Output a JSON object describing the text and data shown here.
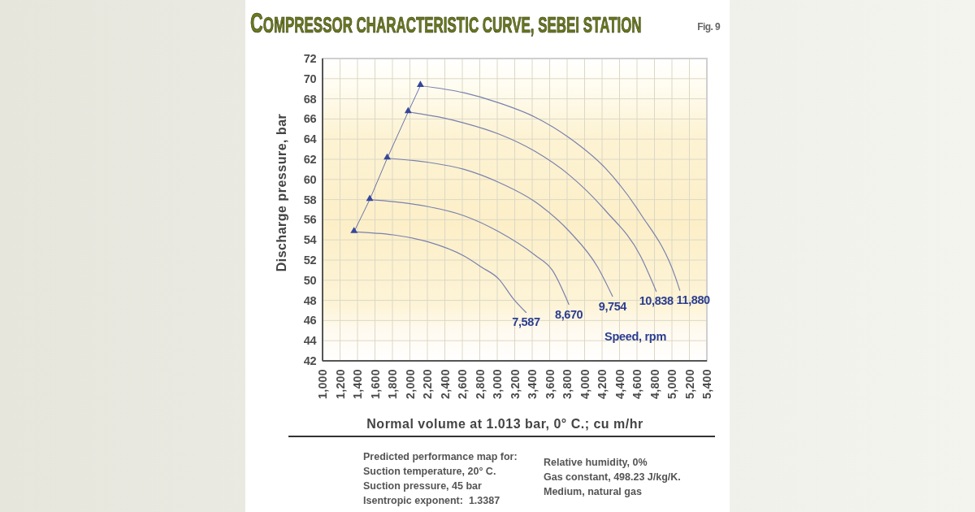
{
  "chart_data": {
    "type": "line",
    "title": "COMPRESSOR CHARACTERISTIC CURVE, SEBEI STATION",
    "xlabel": "Normal volume at 1.013 bar, 0° C.; cu m/hr",
    "ylabel": "Discharge pressure, bar",
    "legend_title": "Speed, rpm",
    "xlim": [
      1000,
      5400
    ],
    "xticks": [
      {
        "value": 1000,
        "label": "1,000"
      },
      {
        "value": 1200,
        "label": "1,200"
      },
      {
        "value": 1400,
        "label": "1,400"
      },
      {
        "value": 1600,
        "label": "1,600"
      },
      {
        "value": 1800,
        "label": "1,800"
      },
      {
        "value": 2000,
        "label": "2,000"
      },
      {
        "value": 2200,
        "label": "2,200"
      },
      {
        "value": 2400,
        "label": "2,400"
      },
      {
        "value": 2600,
        "label": "2,600"
      },
      {
        "value": 2800,
        "label": "2,800"
      },
      {
        "value": 3000,
        "label": "3,000"
      },
      {
        "value": 3200,
        "label": "3,200"
      },
      {
        "value": 3400,
        "label": "3,400"
      },
      {
        "value": 3600,
        "label": "3,600"
      },
      {
        "value": 3800,
        "label": "3,800"
      },
      {
        "value": 4000,
        "label": "4,000"
      },
      {
        "value": 4200,
        "label": "4,200"
      },
      {
        "value": 4400,
        "label": "4,400"
      },
      {
        "value": 4600,
        "label": "4,600"
      },
      {
        "value": 4800,
        "label": "4,800"
      },
      {
        "value": 5000,
        "label": "5,000"
      },
      {
        "value": 5200,
        "label": "5,200"
      },
      {
        "value": 5400,
        "label": "5,400"
      }
    ],
    "ylim": [
      42,
      72
    ],
    "yticks": [
      42,
      44,
      46,
      48,
      50,
      52,
      54,
      56,
      58,
      60,
      62,
      64,
      66,
      68,
      70,
      72
    ],
    "grid": true,
    "series": [
      {
        "name": "7,587",
        "color": "#7981ad",
        "x": [
          1360,
          1810,
          2210,
          2620,
          2820,
          3020,
          3180,
          3330
        ],
        "values": [
          54.8,
          54.5,
          53.8,
          52.4,
          51.3,
          50.1,
          48.2,
          46.8
        ]
      },
      {
        "name": "8,670",
        "color": "#7981ad",
        "x": [
          1540,
          1810,
          2210,
          2620,
          3020,
          3430,
          3630,
          3820
        ],
        "values": [
          58.0,
          57.8,
          57.3,
          56.4,
          54.8,
          52.5,
          51.0,
          47.6
        ]
      },
      {
        "name": "9,754",
        "color": "#7981ad",
        "x": [
          1740,
          2210,
          2620,
          3020,
          3430,
          3830,
          4150,
          4320
        ],
        "values": [
          62.1,
          61.7,
          61.0,
          59.7,
          57.8,
          54.8,
          51.3,
          48.4
        ]
      },
      {
        "name": "10,838",
        "color": "#7981ad",
        "x": [
          1980,
          2330,
          2620,
          3020,
          3430,
          3830,
          4240,
          4640,
          4820
        ],
        "values": [
          66.7,
          66.2,
          65.6,
          64.5,
          62.8,
          60.4,
          56.9,
          52.4,
          48.9
        ]
      },
      {
        "name": "11,880",
        "color": "#7981ad",
        "x": [
          2120,
          2620,
          3020,
          3430,
          3830,
          4240,
          4640,
          5040,
          5090
        ],
        "values": [
          69.3,
          68.6,
          67.6,
          66.2,
          64.1,
          61.1,
          56.6,
          50.3,
          49.0
        ]
      },
      {
        "color": "#34479a",
        "marker": "triangle",
        "x": [
          1360,
          1540,
          1740,
          1980,
          2120
        ],
        "values": [
          54.8,
          58.0,
          62.1,
          66.7,
          69.3
        ]
      }
    ],
    "annotations": [
      "Fig. 9",
      "Predicted performance map for:",
      "Suction temperature, 20° C.",
      "Suction pressure, 45 bar",
      "Isentropic exponent:  1.3387",
      "Relative humidity, 0%",
      "Gas constant, 498.23 J/kg/K.",
      "Medium, natural gas"
    ]
  }
}
